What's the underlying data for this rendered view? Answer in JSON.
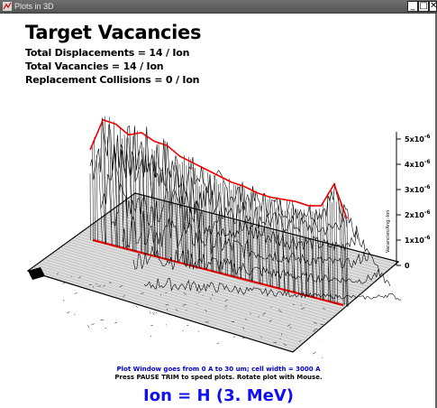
{
  "window": {
    "title": "Plots in 3D",
    "minimize_label": "_",
    "maximize_label": "□",
    "close_label": "✕",
    "icon": "trim-app-icon"
  },
  "header": {
    "title": "Target Vacancies",
    "total_displacements": "Total Displacements = 14 / Ion",
    "total_vacancies": "Total Vacancies = 14 / Ion",
    "replacement_collisions": "Replacement Collisions = 0 / Ion"
  },
  "chart_data": {
    "type": "area",
    "z_axis_label": "Vacancies/Ang.-Ion",
    "z_ticks": [
      {
        "value": 0,
        "label": "0"
      },
      {
        "value": 1e-06,
        "label": "1x10^-6"
      },
      {
        "value": 2e-06,
        "label": "2x10^-6"
      },
      {
        "value": 3e-06,
        "label": "3x10^-6"
      },
      {
        "value": 4e-06,
        "label": "4x10^-6"
      },
      {
        "value": 5e-06,
        "label": "5x10^-6"
      }
    ],
    "colors": {
      "envelope": "#ee0000",
      "wireframe": "#000000",
      "floor": "#dedede"
    },
    "depth_profile": {
      "x": [
        0,
        1.5,
        3,
        4.5,
        6,
        7.5,
        9,
        10.5,
        12,
        13.5,
        15,
        16.5,
        18,
        19.5,
        21,
        22.5,
        24,
        25.5,
        27,
        28.5,
        30
      ],
      "y": [
        4.2e-06,
        5.6e-06,
        5.4e-06,
        4.9e-06,
        5e-06,
        4.6e-06,
        4.4e-06,
        3.9e-06,
        3.6e-06,
        3.3e-06,
        3e-06,
        2.7e-06,
        2.5e-06,
        2.2e-06,
        2e-06,
        1.9e-06,
        1.8e-06,
        1.6e-06,
        1.6e-06,
        2.6e-06,
        1e-06
      ]
    }
  },
  "footer": {
    "window_note": "Plot Window goes from 0 A to 30 um;  cell width = 3000 A",
    "pause_note": "Press PAUSE TRIM to speed plots.   Rotate plot with Mouse.",
    "ion_label": "Ion =  H (3. MeV)"
  }
}
